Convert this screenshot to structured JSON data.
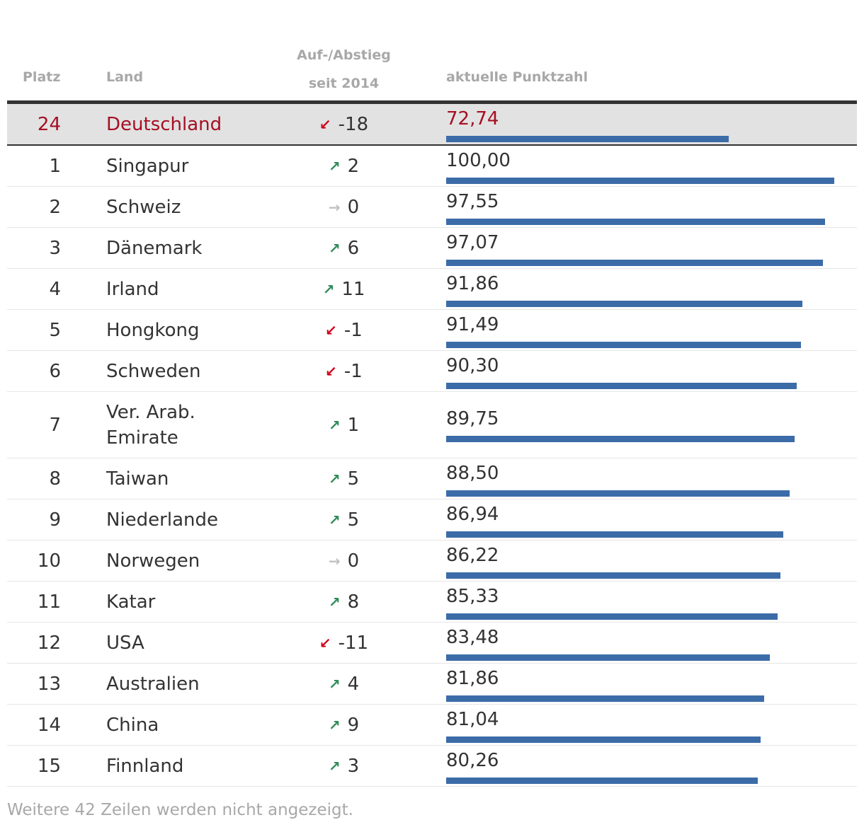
{
  "headers": {
    "rank": "Platz",
    "country": "Land",
    "change_line1": "Auf-/Abstieg",
    "change_line2": "seit 2014",
    "score": "aktuelle Punktzahl"
  },
  "chart_data": {
    "type": "table",
    "columns": [
      "Platz",
      "Land",
      "Auf-/Abstieg seit 2014",
      "aktuelle Punktzahl"
    ],
    "score_max": 100,
    "rows": [
      {
        "rank": "24",
        "country": "Deutschland",
        "change": "-18",
        "direction": "down",
        "score": 72.74,
        "score_label": "72,74",
        "highlight": true
      },
      {
        "rank": "1",
        "country": "Singapur",
        "change": "2",
        "direction": "up",
        "score": 100.0,
        "score_label": "100,00"
      },
      {
        "rank": "2",
        "country": "Schweiz",
        "change": "0",
        "direction": "flat",
        "score": 97.55,
        "score_label": "97,55"
      },
      {
        "rank": "3",
        "country": "Dänemark",
        "change": "6",
        "direction": "up",
        "score": 97.07,
        "score_label": "97,07"
      },
      {
        "rank": "4",
        "country": "Irland",
        "change": "11",
        "direction": "up",
        "score": 91.86,
        "score_label": "91,86"
      },
      {
        "rank": "5",
        "country": "Hongkong",
        "change": "-1",
        "direction": "down",
        "score": 91.49,
        "score_label": "91,49"
      },
      {
        "rank": "6",
        "country": "Schweden",
        "change": "-1",
        "direction": "down",
        "score": 90.3,
        "score_label": "90,30"
      },
      {
        "rank": "7",
        "country": "Ver. Arab. Emirate",
        "change": "1",
        "direction": "up",
        "score": 89.75,
        "score_label": "89,75"
      },
      {
        "rank": "8",
        "country": "Taiwan",
        "change": "5",
        "direction": "up",
        "score": 88.5,
        "score_label": "88,50"
      },
      {
        "rank": "9",
        "country": "Niederlande",
        "change": "5",
        "direction": "up",
        "score": 86.94,
        "score_label": "86,94"
      },
      {
        "rank": "10",
        "country": "Norwegen",
        "change": "0",
        "direction": "flat",
        "score": 86.22,
        "score_label": "86,22"
      },
      {
        "rank": "11",
        "country": "Katar",
        "change": "8",
        "direction": "up",
        "score": 85.33,
        "score_label": "85,33"
      },
      {
        "rank": "12",
        "country": "USA",
        "change": "-11",
        "direction": "down",
        "score": 83.48,
        "score_label": "83,48"
      },
      {
        "rank": "13",
        "country": "Australien",
        "change": "4",
        "direction": "up",
        "score": 81.86,
        "score_label": "81,86"
      },
      {
        "rank": "14",
        "country": "China",
        "change": "9",
        "direction": "up",
        "score": 81.04,
        "score_label": "81,04"
      },
      {
        "rank": "15",
        "country": "Finnland",
        "change": "3",
        "direction": "up",
        "score": 80.26,
        "score_label": "80,26"
      }
    ]
  },
  "colors": {
    "bar": "#3c6ca8",
    "highlight_text": "#a50f23",
    "highlight_bg": "#e2e2e2",
    "up_arrow": "#2e8b57",
    "down_arrow": "#d0021b",
    "flat_arrow": "#c0c0c0"
  },
  "icons": {
    "up": "arrow-up-right-icon",
    "down": "arrow-down-left-icon",
    "flat": "arrow-right-icon"
  },
  "footer": "Weitere 42 Zeilen werden nicht angezeigt."
}
